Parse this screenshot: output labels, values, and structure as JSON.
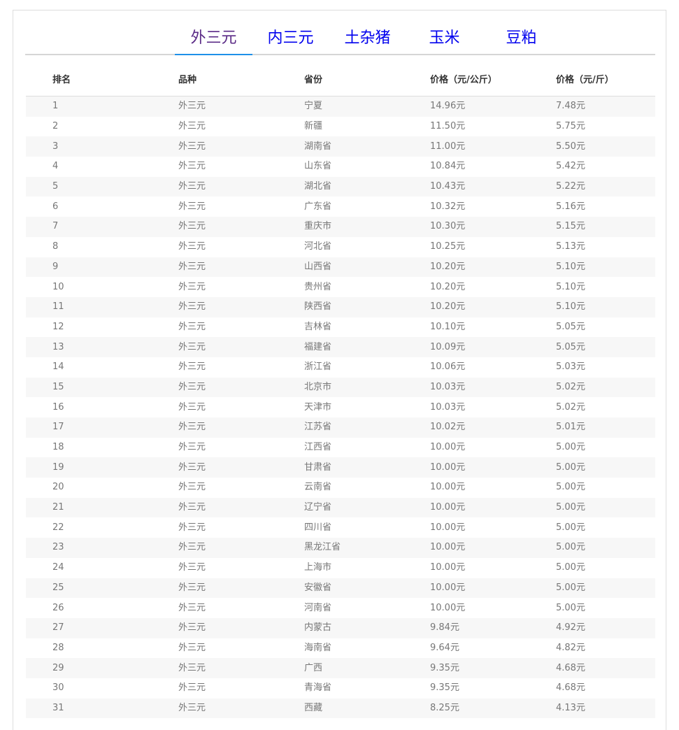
{
  "tabs": [
    {
      "label": "外三元",
      "active": true
    },
    {
      "label": "内三元"
    },
    {
      "label": "土杂猪"
    },
    {
      "label": "玉米"
    },
    {
      "label": "豆粕"
    }
  ],
  "colors": {
    "active_tab": "#5a2a86",
    "tab": "#0000ee",
    "underline": "#1e90e8",
    "row_alt": "#f7f7f7"
  },
  "table": {
    "headers": [
      "排名",
      "品种",
      "省份",
      "价格（元/公斤）",
      "价格（元/斤）"
    ],
    "rows": [
      [
        "1",
        "外三元",
        "宁夏",
        "14.96元",
        "7.48元"
      ],
      [
        "2",
        "外三元",
        "新疆",
        "11.50元",
        "5.75元"
      ],
      [
        "3",
        "外三元",
        "湖南省",
        "11.00元",
        "5.50元"
      ],
      [
        "4",
        "外三元",
        "山东省",
        "10.84元",
        "5.42元"
      ],
      [
        "5",
        "外三元",
        "湖北省",
        "10.43元",
        "5.22元"
      ],
      [
        "6",
        "外三元",
        "广东省",
        "10.32元",
        "5.16元"
      ],
      [
        "7",
        "外三元",
        "重庆市",
        "10.30元",
        "5.15元"
      ],
      [
        "8",
        "外三元",
        "河北省",
        "10.25元",
        "5.13元"
      ],
      [
        "9",
        "外三元",
        "山西省",
        "10.20元",
        "5.10元"
      ],
      [
        "10",
        "外三元",
        "贵州省",
        "10.20元",
        "5.10元"
      ],
      [
        "11",
        "外三元",
        "陕西省",
        "10.20元",
        "5.10元"
      ],
      [
        "12",
        "外三元",
        "吉林省",
        "10.10元",
        "5.05元"
      ],
      [
        "13",
        "外三元",
        "福建省",
        "10.09元",
        "5.05元"
      ],
      [
        "14",
        "外三元",
        "浙江省",
        "10.06元",
        "5.03元"
      ],
      [
        "15",
        "外三元",
        "北京市",
        "10.03元",
        "5.02元"
      ],
      [
        "16",
        "外三元",
        "天津市",
        "10.03元",
        "5.02元"
      ],
      [
        "17",
        "外三元",
        "江苏省",
        "10.02元",
        "5.01元"
      ],
      [
        "18",
        "外三元",
        "江西省",
        "10.00元",
        "5.00元"
      ],
      [
        "19",
        "外三元",
        "甘肃省",
        "10.00元",
        "5.00元"
      ],
      [
        "20",
        "外三元",
        "云南省",
        "10.00元",
        "5.00元"
      ],
      [
        "21",
        "外三元",
        "辽宁省",
        "10.00元",
        "5.00元"
      ],
      [
        "22",
        "外三元",
        "四川省",
        "10.00元",
        "5.00元"
      ],
      [
        "23",
        "外三元",
        "黑龙江省",
        "10.00元",
        "5.00元"
      ],
      [
        "24",
        "外三元",
        "上海市",
        "10.00元",
        "5.00元"
      ],
      [
        "25",
        "外三元",
        "安徽省",
        "10.00元",
        "5.00元"
      ],
      [
        "26",
        "外三元",
        "河南省",
        "10.00元",
        "5.00元"
      ],
      [
        "27",
        "外三元",
        "内蒙古",
        "9.84元",
        "4.92元"
      ],
      [
        "28",
        "外三元",
        "海南省",
        "9.64元",
        "4.82元"
      ],
      [
        "29",
        "外三元",
        "广西",
        "9.35元",
        "4.68元"
      ],
      [
        "30",
        "外三元",
        "青海省",
        "9.35元",
        "4.68元"
      ],
      [
        "31",
        "外三元",
        "西藏",
        "8.25元",
        "4.13元"
      ]
    ]
  }
}
